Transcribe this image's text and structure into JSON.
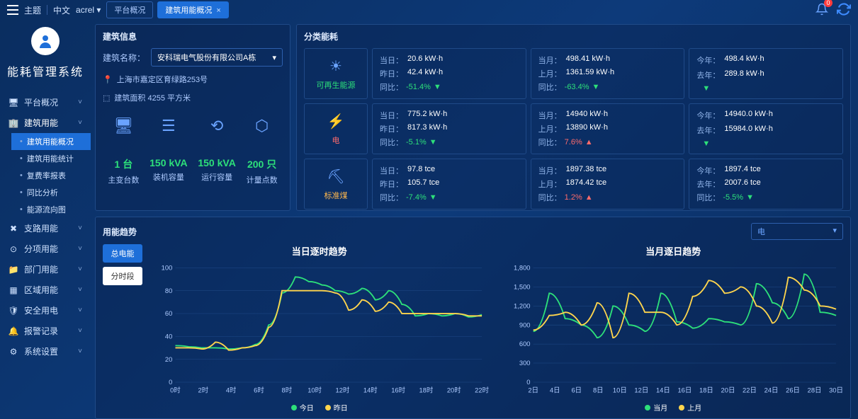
{
  "top": {
    "theme": "主题",
    "lang": "中文",
    "user": "acrel",
    "notif_count": "0"
  },
  "tabs": [
    {
      "label": "平台概况",
      "closable": false
    },
    {
      "label": "建筑用能概况",
      "closable": true,
      "active": true
    }
  ],
  "system_name": "能耗管理系统",
  "nav": [
    {
      "label": "平台概况",
      "icon": "monitor"
    },
    {
      "label": "建筑用能",
      "icon": "building",
      "open": true,
      "children": [
        {
          "label": "建筑用能概况",
          "active": true
        },
        {
          "label": "建筑用能统计"
        },
        {
          "label": "复费率报表"
        },
        {
          "label": "同比分析"
        },
        {
          "label": "能源流向图"
        }
      ]
    },
    {
      "label": "支路用能",
      "icon": "branch"
    },
    {
      "label": "分项用能",
      "icon": "target"
    },
    {
      "label": "部门用能",
      "icon": "folder"
    },
    {
      "label": "区域用能",
      "icon": "grid"
    },
    {
      "label": "安全用电",
      "icon": "shield"
    },
    {
      "label": "报警记录",
      "icon": "bell"
    },
    {
      "label": "系统设置",
      "icon": "gear"
    }
  ],
  "build_info": {
    "title": "建筑信息",
    "name_label": "建筑名称：",
    "name_value": "安科瑞电气股份有限公司A栋",
    "address": "上海市嘉定区育绿路253号",
    "area": "建筑面积 4255 平方米",
    "stats": [
      {
        "value": "1 台",
        "label": "主变台数"
      },
      {
        "value": "150 kVA",
        "label": "装机容量"
      },
      {
        "value": "150 kVA",
        "label": "运行容量"
      },
      {
        "value": "200 只",
        "label": "计量点数"
      }
    ]
  },
  "energy_cat": {
    "title": "分类能耗",
    "heads": [
      {
        "label": "可再生能源",
        "color": "green"
      },
      {
        "label": "电",
        "color": "red"
      },
      {
        "label": "标准煤",
        "color": "yellow"
      }
    ],
    "rows": [
      [
        {
          "k1": "当日：",
          "v1": "20.6 kW·h",
          "k2": "昨日：",
          "v2": "42.4 kW·h",
          "k3": "同比：",
          "pct": "-51.4%",
          "dir": "down"
        },
        {
          "k1": "当月：",
          "v1": "498.41 kW·h",
          "k2": "上月：",
          "v2": "1361.59 kW·h",
          "k3": "同比：",
          "pct": "-63.4%",
          "dir": "down"
        },
        {
          "k1": "今年：",
          "v1": "498.4 kW·h",
          "k2": "去年：",
          "v2": "289.8 kW·h",
          "k3": "",
          "pct": "",
          "dir": "down"
        }
      ],
      [
        {
          "k1": "当日：",
          "v1": "775.2 kW·h",
          "k2": "昨日：",
          "v2": "817.3 kW·h",
          "k3": "同比：",
          "pct": "-5.1%",
          "dir": "down"
        },
        {
          "k1": "当月：",
          "v1": "14940 kW·h",
          "k2": "上月：",
          "v2": "13890 kW·h",
          "k3": "同比：",
          "pct": "7.6%",
          "dir": "up"
        },
        {
          "k1": "今年：",
          "v1": "14940.0 kW·h",
          "k2": "去年：",
          "v2": "15984.0 kW·h",
          "k3": "",
          "pct": "",
          "dir": "down"
        }
      ],
      [
        {
          "k1": "当日：",
          "v1": "97.8 tce",
          "k2": "昨日：",
          "v2": "105.7 tce",
          "k3": "同比：",
          "pct": "-7.4%",
          "dir": "down"
        },
        {
          "k1": "当月：",
          "v1": "1897.38 tce",
          "k2": "上月：",
          "v2": "1874.42 tce",
          "k3": "同比：",
          "pct": "1.2%",
          "dir": "up"
        },
        {
          "k1": "今年：",
          "v1": "1897.4 tce",
          "k2": "去年：",
          "v2": "2007.6 tce",
          "k3": "同比：",
          "pct": "-5.5%",
          "dir": "down"
        }
      ]
    ]
  },
  "trend": {
    "title": "用能趋势",
    "selector": "电",
    "btns": [
      {
        "label": "总电能",
        "active": true
      },
      {
        "label": "分时段",
        "active": false
      }
    ],
    "chart1": {
      "title": "当日逐时趋势",
      "ylim": [
        0,
        100
      ],
      "ystep": 20,
      "xticks": [
        "0时",
        "2时",
        "4时",
        "6时",
        "8时",
        "10时",
        "12时",
        "14时",
        "16时",
        "18时",
        "20时",
        "22时"
      ],
      "series": [
        {
          "name": "今日",
          "color": "#2de07a",
          "data": [
            32,
            31,
            30,
            30,
            29,
            30,
            33,
            50,
            78,
            92,
            88,
            85,
            80,
            77,
            82,
            72,
            80,
            68,
            58,
            60,
            58,
            60,
            57,
            59
          ]
        },
        {
          "name": "昨日",
          "color": "#ffd54d",
          "data": [
            30,
            30,
            29,
            35,
            28,
            30,
            32,
            48,
            80,
            80,
            80,
            80,
            78,
            63,
            72,
            62,
            70,
            60,
            60,
            60,
            60,
            60,
            58,
            58
          ]
        }
      ],
      "legend": [
        "今日",
        "昨日"
      ]
    },
    "chart2": {
      "title": "当月逐日趋势",
      "ylim": [
        0,
        1800
      ],
      "ystep": 300,
      "xticks": [
        "2日",
        "4日",
        "6日",
        "8日",
        "10日",
        "12日",
        "14日",
        "16日",
        "18日",
        "20日",
        "22日",
        "24日",
        "26日",
        "28日",
        "30日"
      ],
      "series": [
        {
          "name": "当月",
          "color": "#2de07a",
          "data": [
            800,
            1400,
            1000,
            900,
            700,
            1200,
            900,
            800,
            1400,
            950,
            850,
            1000,
            950,
            900,
            1550,
            1250,
            1000,
            1700,
            1100,
            1050
          ]
        },
        {
          "name": "上月",
          "color": "#ffd54d",
          "data": [
            820,
            1050,
            1100,
            900,
            1250,
            700,
            1400,
            1100,
            1100,
            900,
            1350,
            1600,
            1400,
            1500,
            1200,
            930,
            1650,
            1450,
            1200,
            1150
          ]
        }
      ],
      "legend": [
        "当月",
        "上月"
      ]
    }
  },
  "colors": {
    "green": "#2de07a",
    "red": "#ff6b6b",
    "yellow": "#ffd54d",
    "axis": "#2d5fad",
    "text": "#aecbff"
  }
}
